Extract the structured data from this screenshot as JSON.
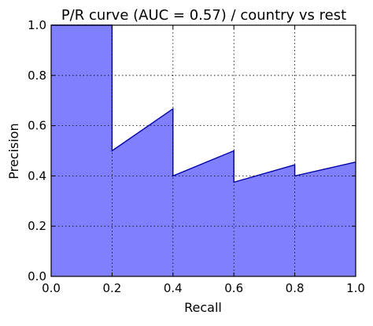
{
  "chart_data": {
    "type": "area",
    "title": "P/R curve (AUC = 0.57) / country vs rest",
    "xlabel": "Recall",
    "ylabel": "Precision",
    "xlim": [
      0.0,
      1.0
    ],
    "ylim": [
      0.0,
      1.0
    ],
    "xticks": [
      "0.0",
      "0.2",
      "0.4",
      "0.6",
      "0.8",
      "1.0"
    ],
    "yticks": [
      "0.0",
      "0.2",
      "0.4",
      "0.6",
      "0.8",
      "1.0"
    ],
    "grid": true,
    "series": [
      {
        "x": [
          0.0,
          0.2,
          0.2,
          0.4,
          0.4,
          0.6,
          0.6,
          0.8,
          0.8,
          1.0
        ],
        "y": [
          1.0,
          1.0,
          0.5,
          0.667,
          0.4,
          0.5,
          0.375,
          0.444,
          0.4,
          0.455
        ],
        "line_color": "#0000aa",
        "fill_color": "#8080ff"
      }
    ]
  }
}
